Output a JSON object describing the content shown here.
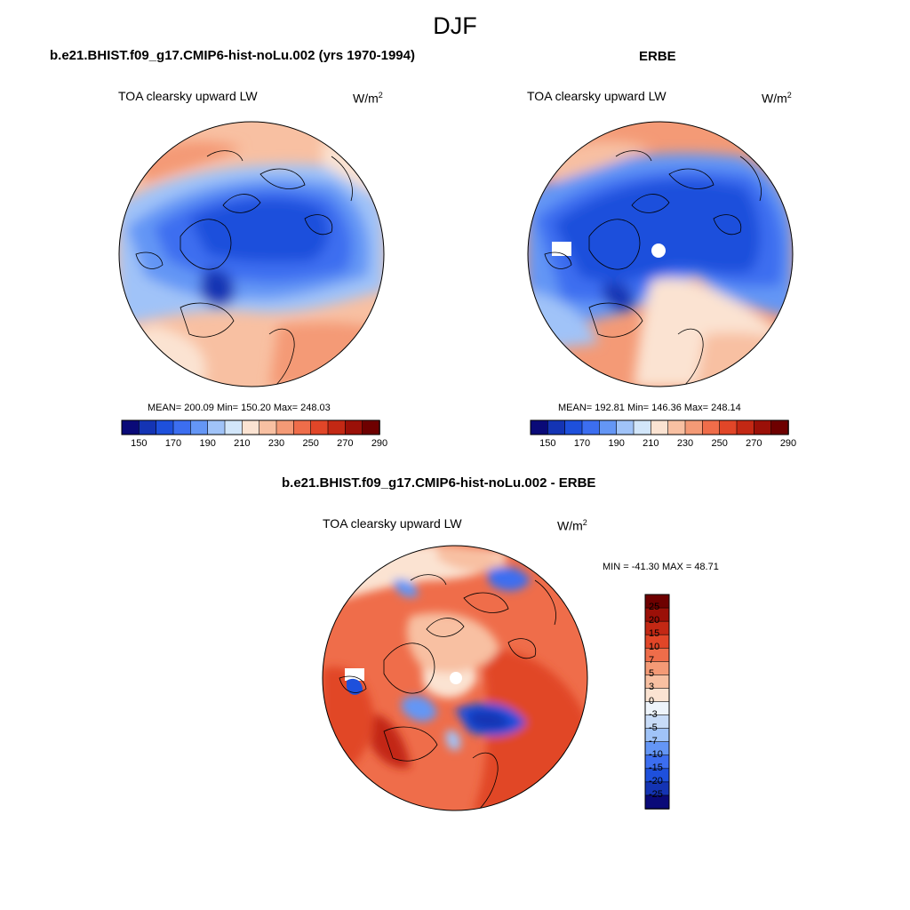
{
  "main_title": "DJF",
  "panels": [
    {
      "id": "model",
      "title": "b.e21.BHIST.f09_g17.CMIP6-hist-noLu.002 (yrs 1970-1994)",
      "variable": "TOA clearsky upward LW",
      "unit_base": "W/m",
      "unit_exp": "2",
      "stats": "MEAN= 200.09  Min= 150.20  Max= 248.03",
      "colorbar_ticks": [
        "150",
        "170",
        "190",
        "210",
        "230",
        "250",
        "270",
        "290"
      ],
      "colorbar_colors": [
        "#0a0a78",
        "#1434b4",
        "#1e50dc",
        "#3c6ef0",
        "#6496f5",
        "#a0c3f8",
        "#d2e6fa",
        "#fbe3d2",
        "#f8c0a2",
        "#f49a76",
        "#ef6d4a",
        "#e14628",
        "#c32814",
        "#9b1008",
        "#6e0000"
      ]
    },
    {
      "id": "obs",
      "title": "ERBE",
      "variable": "TOA clearsky upward LW",
      "unit_base": "W/m",
      "unit_exp": "2",
      "stats": "MEAN= 192.81  Min= 146.36  Max= 248.14",
      "colorbar_ticks": [
        "150",
        "170",
        "190",
        "210",
        "230",
        "250",
        "270",
        "290"
      ],
      "colorbar_colors": [
        "#0a0a78",
        "#1434b4",
        "#1e50dc",
        "#3c6ef0",
        "#6496f5",
        "#a0c3f8",
        "#d2e6fa",
        "#fbe3d2",
        "#f8c0a2",
        "#f49a76",
        "#ef6d4a",
        "#e14628",
        "#c32814",
        "#9b1008",
        "#6e0000"
      ]
    },
    {
      "id": "diff",
      "title": "b.e21.BHIST.f09_g17.CMIP6-hist-noLu.002 - ERBE",
      "variable": "TOA clearsky upward LW",
      "unit_base": "W/m",
      "unit_exp": "2",
      "stats": "MIN = -41.30 MAX =  48.71",
      "colorbar_ticks": [
        "25",
        "20",
        "15",
        "10",
        "7",
        "5",
        "3",
        "0",
        "-3",
        "-5",
        "-7",
        "-10",
        "-15",
        "-20",
        "-25"
      ],
      "colorbar_colors": [
        "#6e0000",
        "#9b1008",
        "#c32814",
        "#e14628",
        "#ef6d4a",
        "#f49a76",
        "#f8c0a2",
        "#fbe3d2",
        "#eef4fb",
        "#c8dcf8",
        "#a0c3f8",
        "#6496f5",
        "#3c6ef0",
        "#1e50dc",
        "#1434b4",
        "#0a0a78"
      ]
    }
  ]
}
